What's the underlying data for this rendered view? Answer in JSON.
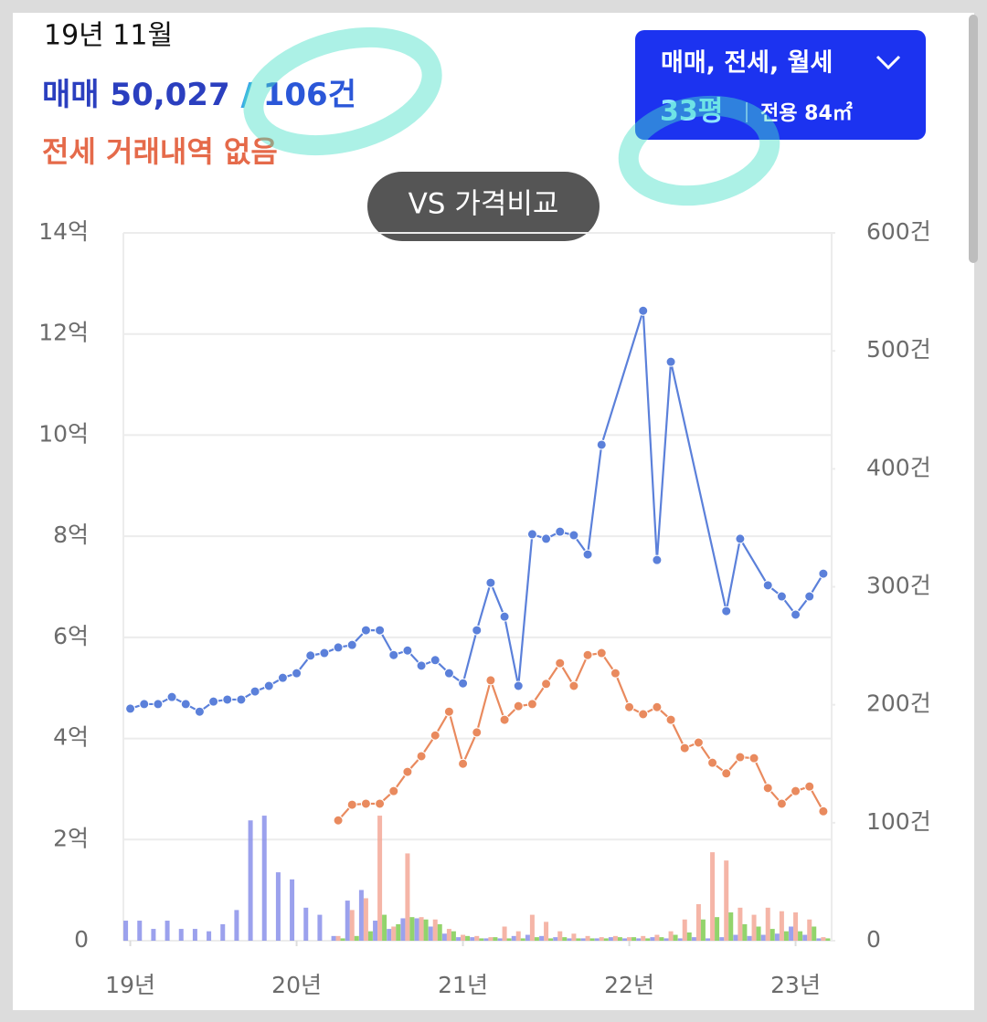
{
  "header": {
    "period": "19년 11월",
    "sale_label": "매매",
    "sale_price": "50,027",
    "sale_sep": "/",
    "sale_count": "106건",
    "jeonse_note": "전세 거래내역 없음",
    "compare_button": "VS 가격비교",
    "filter_types": "매매, 전세, 월세",
    "filter_pyeong": "33평",
    "filter_area": "전용 84㎡"
  },
  "chart_data": {
    "type": "line_bar",
    "x": [
      0,
      1,
      2,
      3,
      4,
      5,
      6,
      7,
      8,
      9,
      10,
      11,
      12,
      13,
      14,
      15,
      16,
      17,
      18,
      19,
      20,
      21,
      22,
      23,
      24,
      25,
      26,
      27,
      28,
      29,
      30,
      31,
      32,
      33,
      34,
      35,
      36,
      37,
      38,
      39,
      40,
      41,
      42,
      43,
      44,
      45,
      46,
      47,
      48,
      49,
      50
    ],
    "xlim": [
      -0.5,
      50.6
    ],
    "xticks": [
      {
        "value": 0,
        "label": "19년"
      },
      {
        "value": 12,
        "label": "20년"
      },
      {
        "value": 24,
        "label": "21년"
      },
      {
        "value": 36,
        "label": "22년"
      },
      {
        "value": 48,
        "label": "23년"
      }
    ],
    "ylim": [
      0,
      14
    ],
    "yticks": [
      0,
      {
        "value": 2,
        "label": "2억"
      },
      {
        "value": 4,
        "label": "4억"
      },
      {
        "value": 6,
        "label": "6억"
      },
      {
        "value": 8,
        "label": "8억"
      },
      {
        "value": 10,
        "label": "10억"
      },
      {
        "value": 12,
        "label": "12억"
      },
      {
        "value": 14,
        "label": "14억"
      }
    ],
    "y2lim": [
      0,
      600
    ],
    "y2ticks": [
      0,
      {
        "value": 100,
        "label": "100건"
      },
      {
        "value": 200,
        "label": "200건"
      },
      {
        "value": 300,
        "label": "300건"
      },
      {
        "value": 400,
        "label": "400건"
      },
      {
        "value": 500,
        "label": "500건"
      },
      {
        "value": 600,
        "label": "600건"
      }
    ],
    "grid": true,
    "series": [
      {
        "kind": "bar",
        "axis": "y2",
        "color": "#8a90ea",
        "values": [
          17,
          17,
          10,
          17,
          10,
          10,
          8,
          14,
          26,
          102,
          106,
          58,
          52,
          28,
          22,
          4,
          34,
          43,
          17,
          10,
          19,
          19,
          12,
          6,
          3,
          3,
          2,
          2,
          4,
          5,
          4,
          3,
          2,
          2,
          2,
          3,
          2,
          2,
          3,
          2,
          2,
          3,
          2,
          3,
          5,
          4,
          5,
          6,
          12,
          5,
          2
        ]
      },
      {
        "kind": "bar",
        "axis": "y2",
        "color": "#f3a898",
        "values": [
          null,
          null,
          null,
          null,
          null,
          null,
          null,
          null,
          null,
          null,
          null,
          null,
          null,
          null,
          null,
          4,
          26,
          36,
          106,
          12,
          74,
          20,
          18,
          10,
          5,
          4,
          3,
          12,
          8,
          22,
          16,
          8,
          6,
          4,
          3,
          4,
          3,
          4,
          5,
          8,
          18,
          31,
          75,
          68,
          28,
          22,
          28,
          25,
          24,
          18,
          3
        ]
      },
      {
        "kind": "bar",
        "axis": "y2",
        "color": "#7fcc52",
        "values": [
          null,
          null,
          null,
          null,
          null,
          null,
          null,
          null,
          null,
          null,
          null,
          null,
          null,
          null,
          null,
          2,
          4,
          8,
          22,
          14,
          20,
          18,
          14,
          8,
          4,
          2,
          3,
          2,
          2,
          3,
          2,
          3,
          2,
          2,
          2,
          3,
          3,
          2,
          3,
          5,
          7,
          18,
          20,
          24,
          14,
          12,
          10,
          8,
          8,
          12,
          2
        ]
      },
      {
        "kind": "line",
        "color": "#e98a5e",
        "values": [
          null,
          null,
          null,
          null,
          null,
          null,
          null,
          null,
          null,
          null,
          null,
          null,
          null,
          null,
          null,
          2.38,
          2.69,
          2.71,
          2.71,
          2.96,
          3.34,
          3.65,
          4.06,
          4.53,
          3.5,
          4.12,
          5.15,
          4.37,
          4.64,
          4.68,
          5.08,
          5.49,
          5.04,
          5.65,
          5.69,
          5.29,
          4.62,
          4.48,
          4.62,
          4.37,
          3.81,
          3.92,
          3.52,
          3.31,
          3.63,
          3.61,
          3.02,
          2.71,
          2.96,
          3.05,
          2.56
        ]
      },
      {
        "kind": "line",
        "color": "#5b80da",
        "x": [
          0,
          1,
          2,
          3,
          4,
          5,
          6,
          7,
          8,
          9,
          10,
          11,
          12,
          13,
          14,
          15,
          16,
          17,
          18,
          19,
          20,
          21,
          22,
          23,
          24,
          25,
          26,
          27,
          28,
          29,
          30,
          31,
          32,
          33,
          34,
          37,
          38,
          39,
          43,
          44,
          46,
          47,
          48,
          49,
          50
        ],
        "values": [
          4.59,
          4.68,
          4.68,
          4.82,
          4.68,
          4.53,
          4.73,
          4.77,
          4.77,
          4.93,
          5.04,
          5.2,
          5.29,
          5.64,
          5.69,
          5.8,
          5.85,
          6.14,
          6.14,
          5.65,
          5.74,
          5.44,
          5.55,
          5.29,
          5.09,
          6.14,
          7.08,
          6.41,
          5.04,
          8.04,
          7.95,
          8.09,
          8.02,
          7.64,
          9.81,
          12.46,
          7.53,
          11.45,
          6.52,
          7.95,
          7.03,
          6.81,
          6.45,
          6.81,
          7.26
        ]
      }
    ]
  }
}
